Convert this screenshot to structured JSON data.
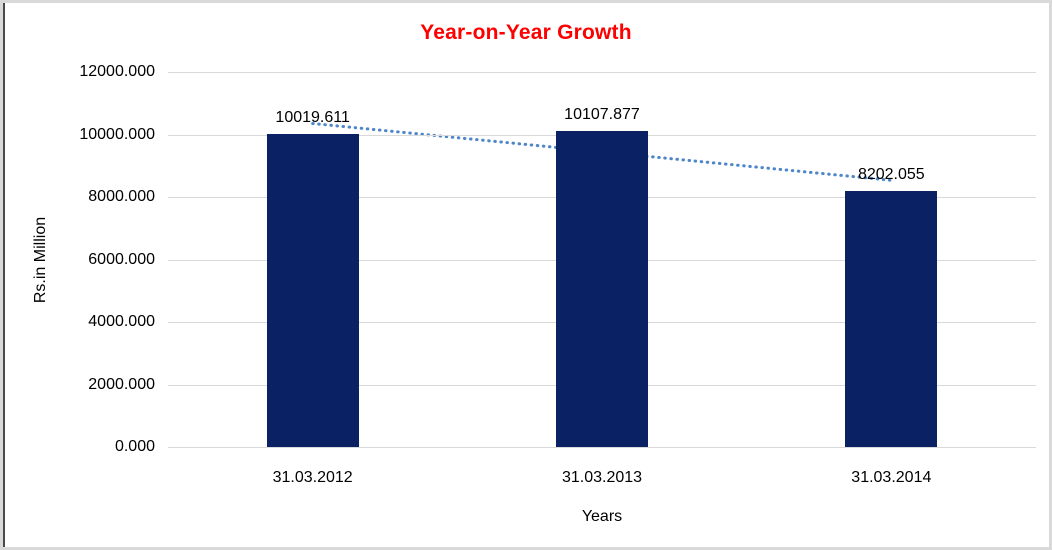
{
  "page": {
    "kind": "embedded-excel-style-chart"
  },
  "chart_data": {
    "type": "bar",
    "title": "Year-on-Year Growth",
    "title_color": "#ff0000",
    "categories": [
      "31.03.2012",
      "31.03.2013",
      "31.03.2014"
    ],
    "values": [
      10019.611,
      10107.877,
      8202.055
    ],
    "value_labels": [
      "10019.611",
      "10107.877",
      "8202.055"
    ],
    "xlabel": "Years",
    "ylabel": "Rs.in Million",
    "ylim": [
      0,
      12000
    ],
    "y_tick_labels": [
      "12000.000",
      "10000.000",
      "8000.000",
      "6000.000",
      "4000.000",
      "2000.000",
      "0.000"
    ],
    "grid": "horizontal",
    "legend": "none",
    "bar_color": "#0a2263",
    "gridline_color": "#d9d9d9",
    "trendline": {
      "type": "linear",
      "style": "dotted",
      "color": "#4e86c8",
      "fitted_endpoints": [
        10351.959,
        8534.403
      ]
    }
  }
}
